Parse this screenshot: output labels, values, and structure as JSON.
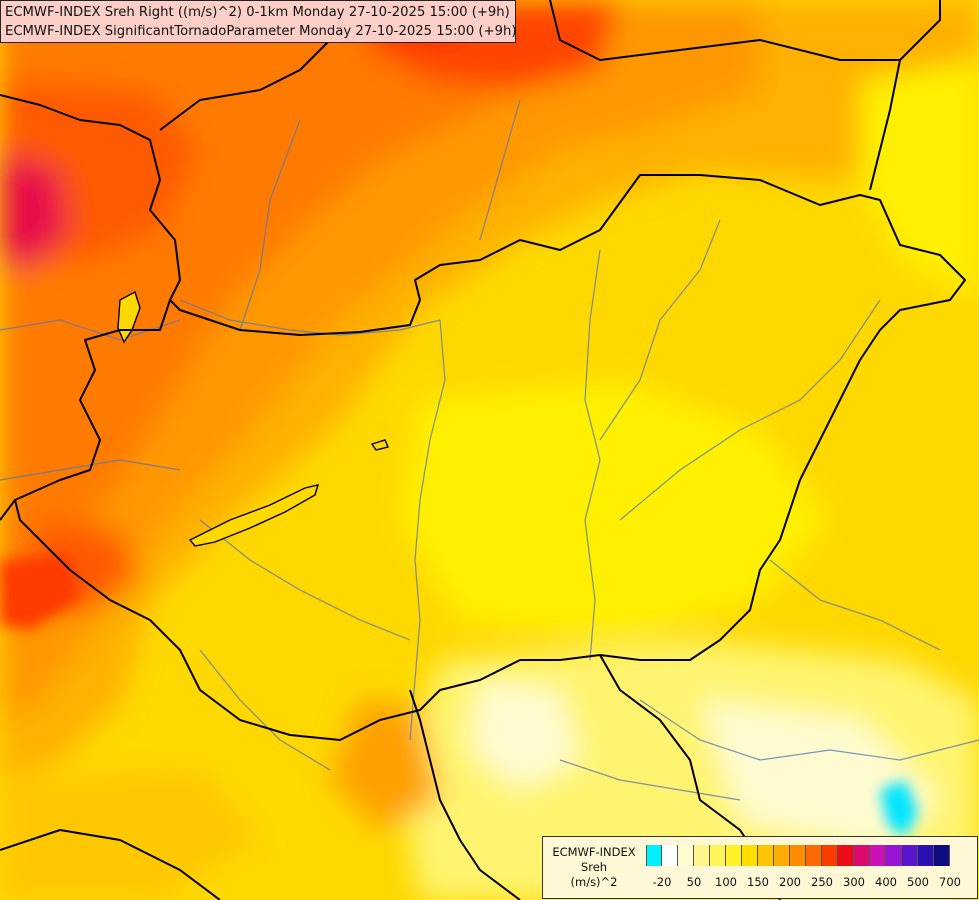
{
  "header": {
    "line1": "ECMWF-INDEX Sreh Right ((m/s)^2) 0-1km Monday 27-10-2025 15:00 (+9h)",
    "line2": "ECMWF-INDEX SignificantTornadoParameter Monday 27-10-2025 15:00 (+9h)"
  },
  "legend": {
    "title1": "ECMWF-INDEX",
    "title2": "Sreh",
    "title3": "(m/s)^2",
    "colors": [
      "#00f0ff",
      "#ffffff",
      "#fffbd0",
      "#fff58a",
      "#fff35a",
      "#fff028",
      "#ffde00",
      "#ffc400",
      "#ffaa00",
      "#ff8c00",
      "#ff6a00",
      "#ff3c00",
      "#ee0a18",
      "#dc0a6e",
      "#cc10b4",
      "#9a14d8",
      "#5a16cc",
      "#2a10b0",
      "#0c0c80"
    ],
    "ticks": [
      "-20",
      "50",
      "100",
      "150",
      "200",
      "250",
      "300",
      "400",
      "500",
      "700"
    ]
  },
  "map": {
    "background_color": "#ffd400",
    "border_color": "#000000",
    "river_color": "#5a78b4"
  }
}
